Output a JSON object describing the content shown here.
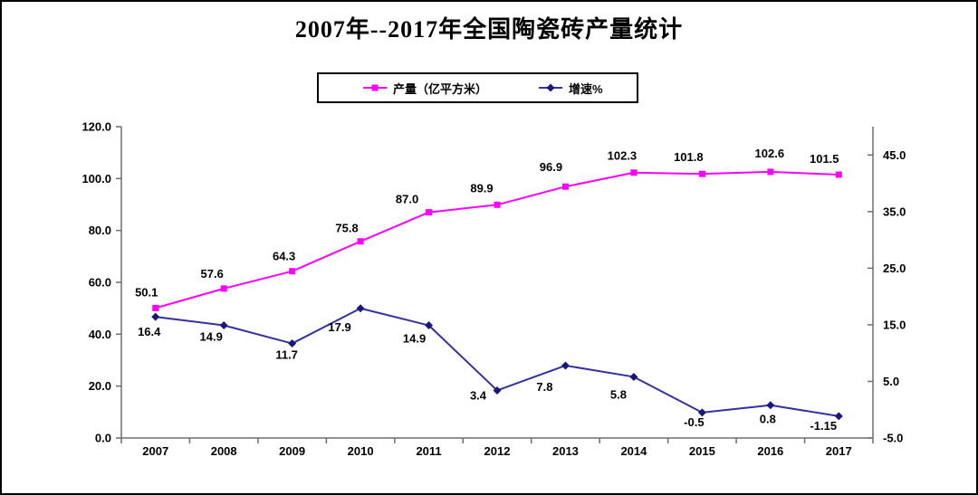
{
  "window": {
    "background": "#FFFFFF",
    "border_color": "#000000"
  },
  "chart_data": {
    "type": "line",
    "title": "2007年--2017年全国陶瓷砖产量统计",
    "categories": [
      "2007",
      "2008",
      "2009",
      "2010",
      "2011",
      "2012",
      "2013",
      "2014",
      "2015",
      "2016",
      "2017"
    ],
    "series": [
      {
        "name": "产量（亿平方米）",
        "axis": "left",
        "marker": "square",
        "color": "#FF00FF",
        "marker_color": "#FF00FF",
        "values": [
          50.1,
          57.6,
          64.3,
          75.8,
          87.0,
          89.9,
          96.9,
          102.3,
          101.8,
          102.6,
          101.5
        ],
        "value_labels": [
          "50.1",
          "57.6",
          "64.3",
          "75.8",
          "87.0",
          "89.9",
          "96.9",
          "102.3",
          "101.8",
          "102.6",
          "101.5"
        ],
        "label_position": "above"
      },
      {
        "name": "增速%",
        "axis": "right",
        "marker": "diamond",
        "color": "#3232A0",
        "marker_color": "#18187A",
        "values": [
          16.4,
          14.9,
          11.7,
          17.9,
          14.9,
          3.4,
          7.8,
          5.8,
          -0.5,
          0.8,
          -1.15
        ],
        "value_labels": [
          "16.4",
          "14.9",
          "11.7",
          "17.9",
          "14.9",
          "3.4",
          "7.8",
          "5.8",
          "-0.5",
          "0.8",
          "-1.15"
        ],
        "label_position": "below"
      }
    ],
    "left_axis": {
      "min": 0,
      "max": 120,
      "step": 20,
      "tick_labels": [
        "0.0",
        "20.0",
        "40.0",
        "60.0",
        "80.0",
        "100.0",
        "120.0"
      ]
    },
    "right_axis": {
      "min": -5,
      "max": 50,
      "step": 10,
      "tick_labels": [
        "-5.0",
        "5.0",
        "15.0",
        "25.0",
        "35.0",
        "45.0"
      ]
    },
    "grid": false,
    "legend_position": "top-center",
    "axis_color": "#6E6E6E",
    "text_color": "#000000"
  }
}
